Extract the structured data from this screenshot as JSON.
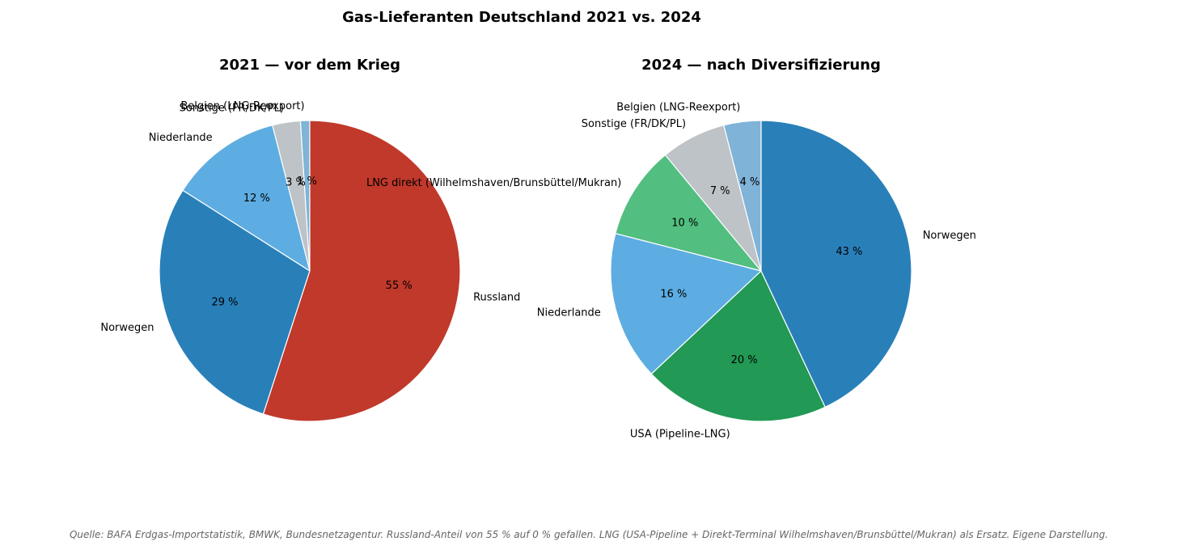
{
  "title": "Gas-Lieferanten Deutschland 2021 vs. 2024",
  "source": "Quelle: BAFA Erdgas-Importstatistik, BMWK, Bundesnetzagentur. Russland-Anteil von 55 % auf 0 % gefallen. LNG (USA-Pipeline + Direkt-Terminal Wilhelmshaven/Brunsbüttel/Mukran) als Ersatz. Eigene Darstellung.",
  "chart_data": [
    {
      "type": "pie",
      "title": "2021 — vor dem Krieg",
      "start": "top",
      "direction": "counterclockwise",
      "slices": [
        {
          "label": "Belgien (LNG-Reexport)",
          "value": 1,
          "pct_label": "1 %",
          "color": "#7fb3d8"
        },
        {
          "label": "Sonstige (FR/DK/PL)",
          "value": 3,
          "pct_label": "3 %",
          "color": "#bdc3c7"
        },
        {
          "label": "Niederlande",
          "value": 12,
          "pct_label": "12 %",
          "color": "#5dade2"
        },
        {
          "label": "Norwegen",
          "value": 29,
          "pct_label": "29 %",
          "color": "#2980b9"
        },
        {
          "label": "Russland",
          "value": 55,
          "pct_label": "55 %",
          "color": "#c0392b"
        }
      ]
    },
    {
      "type": "pie",
      "title": "2024 — nach Diversifizierung",
      "start": "top",
      "direction": "counterclockwise",
      "slices": [
        {
          "label": "Belgien (LNG-Reexport)",
          "value": 4,
          "pct_label": "4 %",
          "color": "#7fb3d8"
        },
        {
          "label": "Sonstige (FR/DK/PL)",
          "value": 7,
          "pct_label": "7 %",
          "color": "#bdc3c7"
        },
        {
          "label": "LNG direkt (Wilhelmshaven/Brunsbüttel/Mukran)",
          "value": 10,
          "pct_label": "10 %",
          "color": "#52be80"
        },
        {
          "label": "Niederlande",
          "value": 16,
          "pct_label": "16 %",
          "color": "#5dade2"
        },
        {
          "label": "USA (Pipeline-LNG)",
          "value": 20,
          "pct_label": "20 %",
          "color": "#229954"
        },
        {
          "label": "Norwegen",
          "value": 43,
          "pct_label": "43 %",
          "color": "#2980b9"
        }
      ]
    }
  ]
}
